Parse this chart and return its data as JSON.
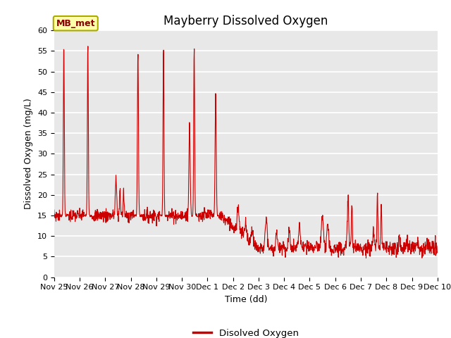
{
  "title": "Mayberry Dissolved Oxygen",
  "xlabel": "Time (dd)",
  "ylabel": "Dissolved Oxygen (mg/L)",
  "ylim": [
    0,
    60
  ],
  "legend_label": "Disolved Oxygen",
  "annotation_text": "MB_met",
  "line_color": "#cc0000",
  "bg_color": "#e8e8e8",
  "tick_labels": [
    "Nov 25",
    "Nov 26",
    "Nov 27",
    "Nov 28",
    "Nov 29",
    "Nov 30",
    "Dec 1",
    "Dec 2",
    "Dec 3",
    "Dec 4",
    "Dec 5",
    "Dec 6",
    "Dec 7",
    "Dec 8",
    "Dec 9",
    "Dec 10"
  ],
  "title_fontsize": 12,
  "axis_fontsize": 9,
  "tick_fontsize": 8
}
